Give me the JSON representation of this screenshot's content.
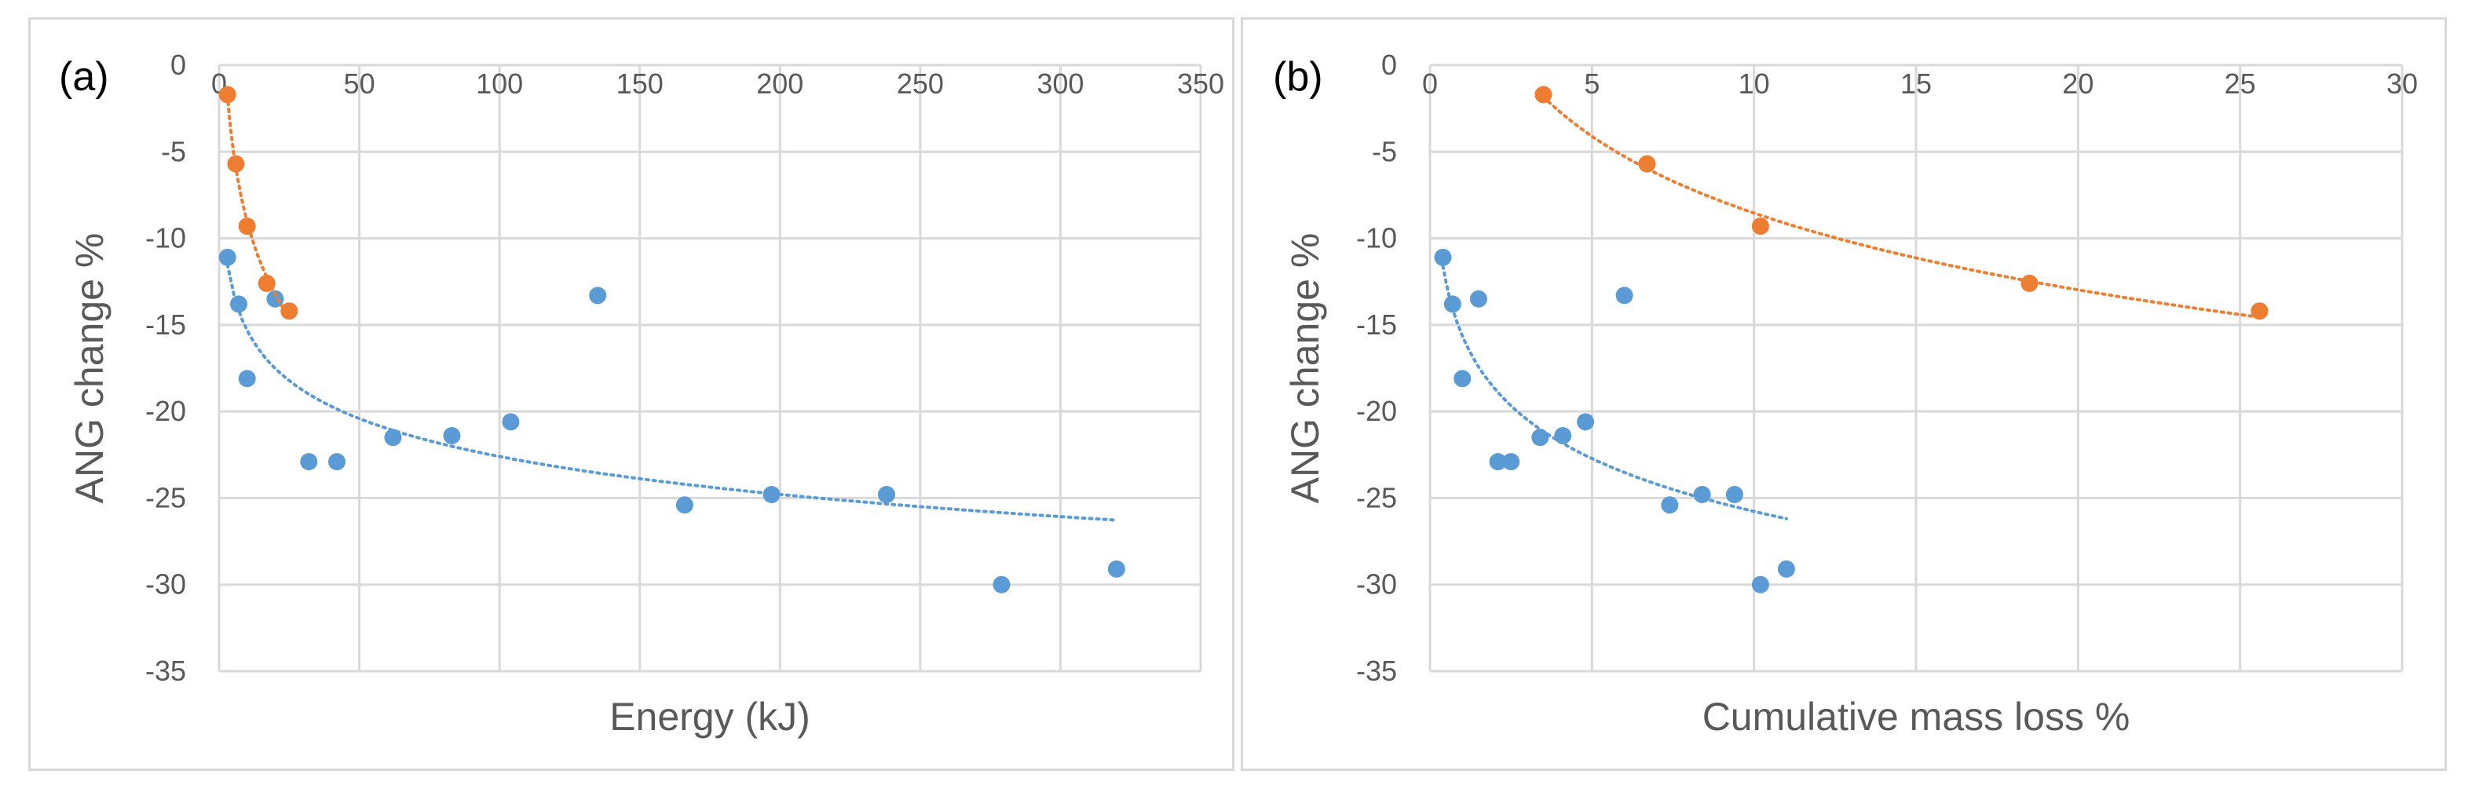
{
  "chart_data": [
    {
      "type": "scatter",
      "panel_label": "(a)",
      "title": "",
      "xlabel": "Energy (kJ)",
      "ylabel": "ANG change %",
      "xlim": [
        0,
        350
      ],
      "ylim": [
        -35,
        0
      ],
      "xticks": [
        "0",
        "50",
        "100",
        "150",
        "200",
        "250",
        "300",
        "350"
      ],
      "yticks": [
        "0",
        "-5",
        "-10",
        "-15",
        "-20",
        "-25",
        "-30",
        "-35"
      ],
      "grid": true,
      "series": [
        {
          "name": "blue",
          "color": "#5b9bd5",
          "trendline": "logarithmic",
          "points": [
            [
              3,
              -11.1
            ],
            [
              7,
              -13.8
            ],
            [
              10,
              -18.1
            ],
            [
              20,
              -13.5
            ],
            [
              32,
              -22.9
            ],
            [
              42,
              -22.9
            ],
            [
              62,
              -21.5
            ],
            [
              83,
              -21.4
            ],
            [
              104,
              -20.6
            ],
            [
              135,
              -13.3
            ],
            [
              166,
              -25.4
            ],
            [
              197,
              -24.8
            ],
            [
              238,
              -24.8
            ],
            [
              279,
              -30.0
            ],
            [
              320,
              -29.1
            ]
          ]
        },
        {
          "name": "orange",
          "color": "#ed7d31",
          "trendline": "logarithmic",
          "points": [
            [
              3,
              -1.7
            ],
            [
              6,
              -5.7
            ],
            [
              10,
              -9.3
            ],
            [
              17,
              -12.6
            ],
            [
              25,
              -14.2
            ]
          ]
        }
      ]
    },
    {
      "type": "scatter",
      "panel_label": "(b)",
      "title": "",
      "xlabel": "Cumulative mass loss %",
      "ylabel": "ANG change %",
      "xlim": [
        0,
        30
      ],
      "ylim": [
        -35,
        0
      ],
      "xticks": [
        "0",
        "5",
        "10",
        "15",
        "20",
        "25",
        "30"
      ],
      "yticks": [
        "0",
        "-5",
        "-10",
        "-15",
        "-20",
        "-25",
        "-30",
        "-35"
      ],
      "grid": true,
      "series": [
        {
          "name": "blue",
          "color": "#5b9bd5",
          "trendline": "logarithmic",
          "points": [
            [
              0.4,
              -11.1
            ],
            [
              0.7,
              -13.8
            ],
            [
              1.0,
              -18.1
            ],
            [
              1.5,
              -13.5
            ],
            [
              2.1,
              -22.9
            ],
            [
              2.5,
              -22.9
            ],
            [
              3.4,
              -21.5
            ],
            [
              4.1,
              -21.4
            ],
            [
              4.8,
              -20.6
            ],
            [
              6.0,
              -13.3
            ],
            [
              7.4,
              -25.4
            ],
            [
              8.4,
              -24.8
            ],
            [
              9.4,
              -24.8
            ],
            [
              10.2,
              -30.0
            ],
            [
              11.0,
              -29.1
            ]
          ]
        },
        {
          "name": "orange",
          "color": "#ed7d31",
          "trendline": "logarithmic",
          "points": [
            [
              3.5,
              -1.7
            ],
            [
              6.7,
              -5.7
            ],
            [
              10.2,
              -9.3
            ],
            [
              18.5,
              -12.6
            ],
            [
              25.6,
              -14.2
            ]
          ]
        }
      ]
    }
  ]
}
